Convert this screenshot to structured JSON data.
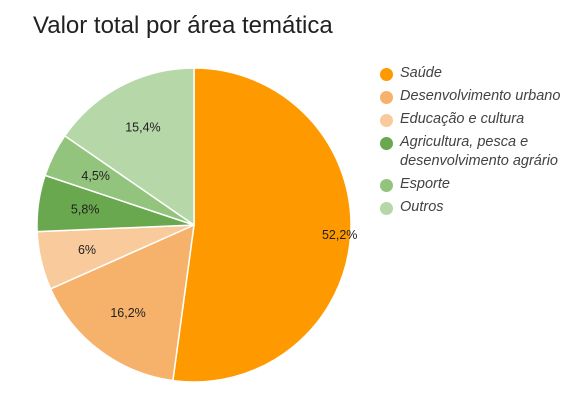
{
  "chart_data": {
    "type": "pie",
    "title": "Valor total por área temática",
    "legend_position": "right",
    "slices": [
      {
        "label": "Saúde",
        "value": 52.2,
        "display": "52,2%",
        "color": "#FF9900"
      },
      {
        "label": "Desenvolvimento urbano",
        "value": 16.2,
        "display": "16,2%",
        "color": "#F6B26B"
      },
      {
        "label": "Educação e cultura",
        "value": 6,
        "display": "6%",
        "color": "#F9CB9C"
      },
      {
        "label": "Agricultura, pesca e desenvolvimento agrário",
        "value": 5.8,
        "display": "5,8%",
        "color": "#6AA84F"
      },
      {
        "label": "Esporte",
        "value": 4.5,
        "display": "4,5%",
        "color": "#93C47D"
      },
      {
        "label": "Outros",
        "value": 15.4,
        "display": "15,4%",
        "color": "#B6D7A8"
      }
    ]
  }
}
